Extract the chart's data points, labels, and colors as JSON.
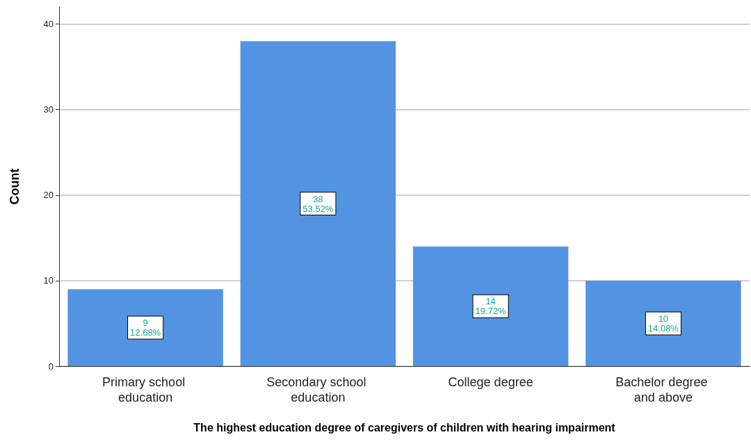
{
  "chart_data": {
    "type": "bar",
    "xlabel": "The highest education degree of caregivers of children with hearing impairment",
    "ylabel": "Count",
    "categories": [
      "Primary school education",
      "Secondary school education",
      "College degree",
      "Bachelor degree and above"
    ],
    "values": [
      9,
      38,
      14,
      10
    ],
    "value_labels": [
      "9\n12.68%",
      "38\n53.52%",
      "14\n19.72%",
      "10\n14.08%"
    ],
    "color": "#5294e2",
    "ylim": [
      0,
      42
    ],
    "yticks": [
      0,
      10,
      20,
      30,
      40
    ],
    "grid": "y"
  }
}
